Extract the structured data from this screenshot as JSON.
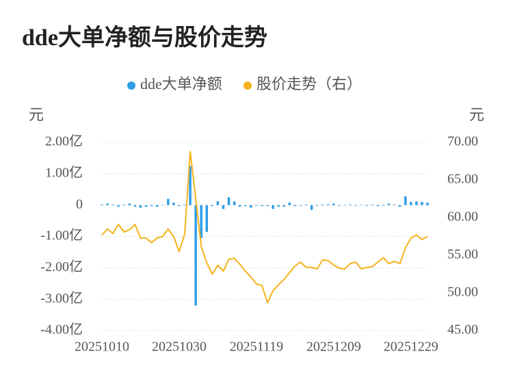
{
  "chart_data": {
    "type": "bar",
    "title": "dde大单净额与股价走势",
    "y_unit": "元",
    "y2_unit": "元",
    "categories": [
      "20251010",
      null,
      null,
      null,
      null,
      null,
      null,
      null,
      null,
      null,
      null,
      null,
      null,
      null,
      "20251030",
      null,
      null,
      null,
      null,
      null,
      null,
      null,
      null,
      null,
      null,
      null,
      null,
      null,
      "20251119",
      null,
      null,
      null,
      null,
      null,
      null,
      null,
      null,
      null,
      null,
      null,
      null,
      null,
      "20251209",
      null,
      null,
      null,
      null,
      null,
      null,
      null,
      null,
      null,
      null,
      null,
      null,
      null,
      "20251229",
      null,
      null,
      null
    ],
    "series": [
      {
        "name": "dde大单净额",
        "type": "bar",
        "axis": "y",
        "color": "#2e9ee8",
        "values": [
          0.02,
          0.05,
          0.02,
          -0.05,
          0.02,
          0.05,
          -0.05,
          -0.08,
          -0.05,
          -0.03,
          -0.05,
          0.01,
          0.2,
          0.08,
          -0.03,
          0.02,
          1.25,
          -3.2,
          -1.05,
          -0.85,
          -0.03,
          0.12,
          -0.12,
          0.25,
          0.12,
          -0.05,
          -0.03,
          -0.08,
          -0.02,
          -0.03,
          -0.03,
          -0.12,
          -0.05,
          -0.05,
          0.08,
          -0.03,
          -0.02,
          0.02,
          -0.15,
          -0.02,
          0.02,
          0.03,
          0.05,
          -0.02,
          0.01,
          0.02,
          -0.02,
          0.01,
          -0.02,
          0.02,
          -0.03,
          -0.02,
          0.05,
          0.02,
          -0.05,
          0.28,
          0.1,
          0.12,
          0.1,
          0.08
        ]
      },
      {
        "name": "股价走势（右）",
        "type": "line",
        "axis": "y2",
        "color": "#f5b21a",
        "values": [
          57.7,
          58.5,
          57.9,
          59.1,
          58.1,
          58.4,
          59.1,
          57.3,
          57.3,
          56.7,
          57.3,
          57.5,
          58.5,
          57.5,
          55.5,
          57.8,
          68.8,
          62.5,
          56.2,
          54.0,
          52.5,
          53.7,
          52.9,
          54.5,
          54.6,
          53.8,
          52.9,
          52.1,
          51.2,
          51.0,
          48.7,
          50.3,
          51.1,
          51.8,
          52.7,
          53.6,
          54.1,
          53.4,
          53.4,
          53.2,
          54.4,
          54.3,
          53.7,
          53.3,
          53.2,
          53.9,
          54.1,
          53.2,
          53.4,
          53.5,
          54.1,
          54.7,
          53.9,
          54.2,
          53.9,
          56.0,
          57.3,
          57.7,
          57.1,
          57.5
        ]
      }
    ],
    "ylim": [
      -4,
      2
    ],
    "yticks": [
      {
        "value": 2,
        "label": "2.00亿"
      },
      {
        "value": 1,
        "label": "1.00亿"
      },
      0,
      {
        "value": -1,
        "label": "-1.00亿"
      },
      {
        "value": -2,
        "label": "-2.00亿"
      },
      {
        "value": -3,
        "label": "-3.00亿"
      },
      {
        "value": -4,
        "label": "-4.00亿"
      }
    ],
    "y2lim": [
      45,
      70
    ],
    "y2ticks": [
      {
        "value": 70,
        "label": "70.00"
      },
      {
        "value": 65,
        "label": "65.00"
      },
      {
        "value": 60,
        "label": "60.00"
      },
      {
        "value": 55,
        "label": "55.00"
      },
      {
        "value": 50,
        "label": "50.00"
      },
      {
        "value": 45,
        "label": "45.00"
      }
    ],
    "grid": true
  }
}
